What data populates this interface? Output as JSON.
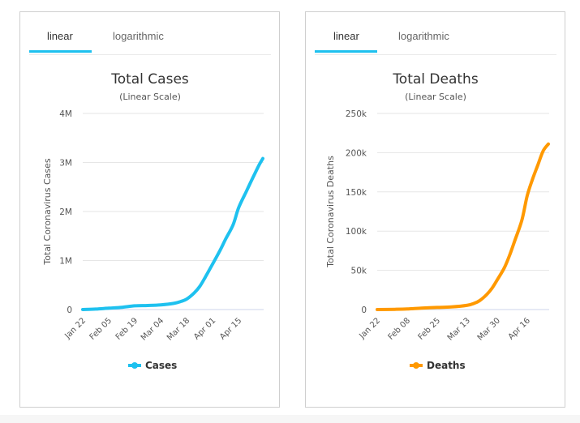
{
  "panels": [
    {
      "tabs": [
        {
          "label": "linear",
          "active": true
        },
        {
          "label": "logarithmic",
          "active": false
        }
      ],
      "accent": "#1ec1ef"
    },
    {
      "tabs": [
        {
          "label": "linear",
          "active": true
        },
        {
          "label": "logarithmic",
          "active": false
        }
      ],
      "accent": "#1ec1ef"
    }
  ],
  "chart_data": [
    {
      "type": "line",
      "title": "Total Cases",
      "subtitle": "(Linear Scale)",
      "xlabel": "",
      "ylabel": "Total Coronavirus Cases",
      "ylim": [
        0,
        4000000
      ],
      "yticks": [
        0,
        1000000,
        2000000,
        3000000,
        4000000
      ],
      "ytick_labels": [
        "0",
        "1M",
        "2M",
        "3M",
        "4M"
      ],
      "xticks_day": [
        0,
        14,
        28,
        42,
        56,
        70,
        84
      ],
      "xtick_labels": [
        "Jan 22",
        "Feb 05",
        "Feb 19",
        "Mar 04",
        "Mar 18",
        "Apr 01",
        "Apr 15"
      ],
      "xrange_days": [
        0,
        97
      ],
      "grid": true,
      "legend": "bottom-center",
      "color": "#1ec1ef",
      "series": [
        {
          "name": "Cases",
          "x_day": [
            0,
            7,
            14,
            21,
            28,
            35,
            42,
            49,
            53,
            56,
            60,
            63,
            66,
            70,
            74,
            77,
            81,
            84,
            88,
            91,
            95,
            97
          ],
          "values": [
            555,
            9800,
            28300,
            45200,
            75600,
            82400,
            95000,
            126000,
            167000,
            214000,
            338000,
            470000,
            660000,
            932000,
            1210000,
            1440000,
            1730000,
            2080000,
            2400000,
            2640000,
            2950000,
            3080000
          ]
        }
      ]
    },
    {
      "type": "line",
      "title": "Total Deaths",
      "subtitle": "(Linear Scale)",
      "xlabel": "",
      "ylabel": "Total Coronavirus Deaths",
      "ylim": [
        0,
        250000
      ],
      "yticks": [
        0,
        50000,
        100000,
        150000,
        200000,
        250000
      ],
      "ytick_labels": [
        "0",
        "50k",
        "100k",
        "150k",
        "200k",
        "250k"
      ],
      "xticks_day": [
        0,
        17,
        34,
        51,
        68,
        85
      ],
      "xtick_labels": [
        "Jan 22",
        "Feb 08",
        "Feb 25",
        "Mar 13",
        "Mar 30",
        "Apr 16"
      ],
      "xrange_days": [
        0,
        97
      ],
      "grid": true,
      "legend": "bottom-center",
      "color": "#ff9900",
      "series": [
        {
          "name": "Deaths",
          "x_day": [
            0,
            10,
            17,
            25,
            34,
            42,
            51,
            55,
            58,
            62,
            65,
            68,
            72,
            75,
            78,
            82,
            85,
            88,
            91,
            94,
            97
          ],
          "values": [
            17,
            300,
            720,
            1800,
            2700,
            3300,
            5400,
            8000,
            11300,
            19000,
            27000,
            37800,
            53000,
            69000,
            88000,
            114000,
            145000,
            166000,
            184000,
            202000,
            211000
          ]
        }
      ]
    }
  ]
}
